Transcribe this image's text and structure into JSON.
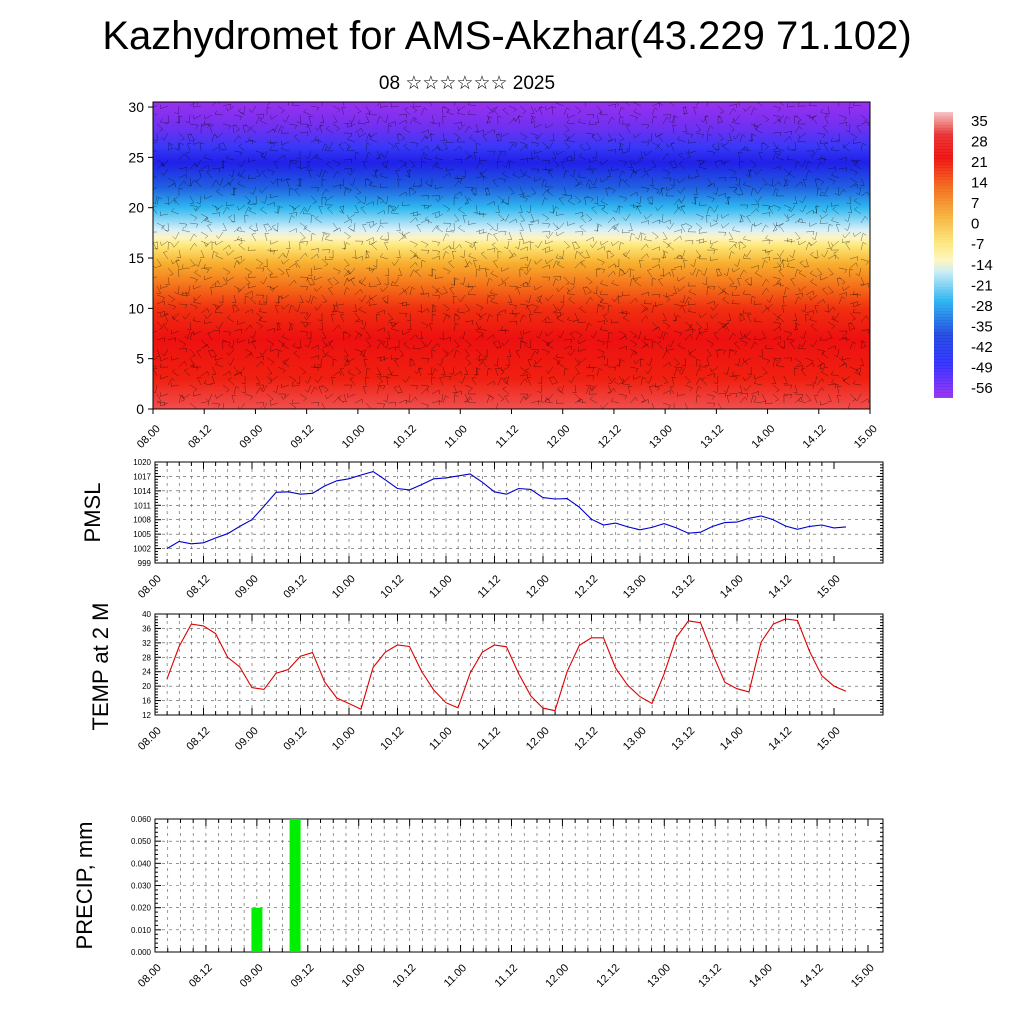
{
  "title": "Kazhydromet for AMS-Akzhar(43.229 71.102)",
  "subtitle": "08 ☆☆☆☆☆☆ 2025",
  "colors": {
    "pmsl_line": "#0000cc",
    "temp_line": "#dd0000",
    "precip_bar": "#00ee00"
  },
  "chart_data": [
    {
      "type": "heatmap",
      "name": "upper-air temperature and wind cross-section",
      "x_tick_labels": [
        "08.00",
        "08.12",
        "09.00",
        "09.12",
        "10.00",
        "10.12",
        "11.00",
        "11.12",
        "12.00",
        "12.12",
        "13.00",
        "13.12",
        "14.00",
        "14.12",
        "15.00"
      ],
      "y_ticks": [
        0,
        5,
        10,
        15,
        20,
        25,
        30
      ],
      "ylim": [
        0,
        30.5
      ],
      "colorbar_labels": [
        "35",
        "28",
        "21",
        "14",
        "7",
        "0",
        "-7",
        "-14",
        "-21",
        "-28",
        "-35",
        "-42",
        "-49",
        "-56"
      ],
      "colorbar_range": [
        -60,
        40
      ],
      "colorbar_stops": [
        {
          "value": 40,
          "color": "#f4c4c4"
        },
        {
          "value": 32,
          "color": "#e83030"
        },
        {
          "value": 24,
          "color": "#ee1010"
        },
        {
          "value": 14,
          "color": "#f26a1a"
        },
        {
          "value": 4,
          "color": "#f5b03a"
        },
        {
          "value": -6,
          "color": "#fde880"
        },
        {
          "value": -12,
          "color": "#fff6c0"
        },
        {
          "value": -16,
          "color": "#c8ecf6"
        },
        {
          "value": -26,
          "color": "#2ab4f0"
        },
        {
          "value": -38,
          "color": "#2048e0"
        },
        {
          "value": -48,
          "color": "#3030ff"
        },
        {
          "value": -60,
          "color": "#9a30f0"
        }
      ],
      "grid": false,
      "legend": "right"
    },
    {
      "type": "line",
      "ylabel": "PMSL",
      "yticks": [
        999,
        1002,
        1005,
        1008,
        1011,
        1014,
        1017,
        1020
      ],
      "ylim": [
        999,
        1020
      ],
      "x_tick_labels": [
        "08.00",
        "08.12",
        "09.00",
        "09.12",
        "10.00",
        "10.12",
        "11.00",
        "11.12",
        "12.00",
        "12.12",
        "13.00",
        "13.12",
        "14.00",
        "14.12",
        "15.00"
      ],
      "x_hours_step": 3,
      "grid": true,
      "values": [
        1002,
        1003.5,
        1003,
        1003.2,
        1004.2,
        1005.1,
        1006.6,
        1008,
        1010.8,
        1013.7,
        1013.8,
        1013.3,
        1013.5,
        1015,
        1016.1,
        1016.5,
        1017.3,
        1018,
        1016.3,
        1014.5,
        1014.2,
        1015.3,
        1016.5,
        1016.7,
        1017.1,
        1017.5,
        1015.8,
        1013.8,
        1013.3,
        1014.5,
        1014.3,
        1012.6,
        1012.3,
        1012.4,
        1010.6,
        1008.1,
        1006.9,
        1007.3,
        1006.5,
        1005.9,
        1006.4,
        1007.2,
        1006.3,
        1005.2,
        1005.4,
        1006.6,
        1007.4,
        1007.5,
        1008.3,
        1008.8,
        1008,
        1006.7,
        1006,
        1006.6,
        1006.9,
        1006.3,
        1006.5
      ]
    },
    {
      "type": "line",
      "ylabel": "TEMP at 2 M",
      "yticks": [
        12,
        16,
        20,
        24,
        28,
        32,
        36,
        40
      ],
      "ylim": [
        12,
        40
      ],
      "x_tick_labels": [
        "08.00",
        "08.12",
        "09.00",
        "09.12",
        "10.00",
        "10.12",
        "11.00",
        "11.12",
        "12.00",
        "12.12",
        "13.00",
        "13.12",
        "14.00",
        "14.12",
        "15.00"
      ],
      "x_hours_step": 3,
      "grid": true,
      "values": [
        22,
        31,
        37.2,
        36.7,
        34.6,
        28,
        25.3,
        19.6,
        19.1,
        23.6,
        24.6,
        28.3,
        29.3,
        21.2,
        16.7,
        15.2,
        13.6,
        25.2,
        29.4,
        31.4,
        31,
        24.1,
        18.9,
        15.4,
        14,
        23.6,
        29.4,
        31.4,
        30.9,
        23.5,
        17.3,
        13.9,
        13.2,
        24,
        31.3,
        33.4,
        33.4,
        25,
        20.2,
        17.1,
        15.2,
        23.4,
        33.5,
        38.1,
        37.6,
        29,
        21.1,
        19.3,
        18.4,
        32.2,
        37.2,
        38.6,
        38.2,
        29.6,
        22.9,
        20,
        18.6
      ]
    },
    {
      "type": "bar",
      "ylabel": "PRECIP, mm",
      "yticks": [
        "0.000",
        "0.010",
        "0.020",
        "0.030",
        "0.040",
        "0.050",
        "0.060"
      ],
      "ylim": [
        0,
        0.06
      ],
      "x_tick_labels": [
        "08.00",
        "08.12",
        "09.00",
        "09.12",
        "10.00",
        "10.12",
        "11.00",
        "11.12",
        "12.00",
        "12.12",
        "13.00",
        "13.12",
        "14.00",
        "14.12",
        "15.00"
      ],
      "x_hours_step": 3,
      "grid": true,
      "bars": [
        {
          "x_step": 8,
          "value": 0.02
        },
        {
          "x_step": 11,
          "value": 0.06
        }
      ]
    }
  ]
}
